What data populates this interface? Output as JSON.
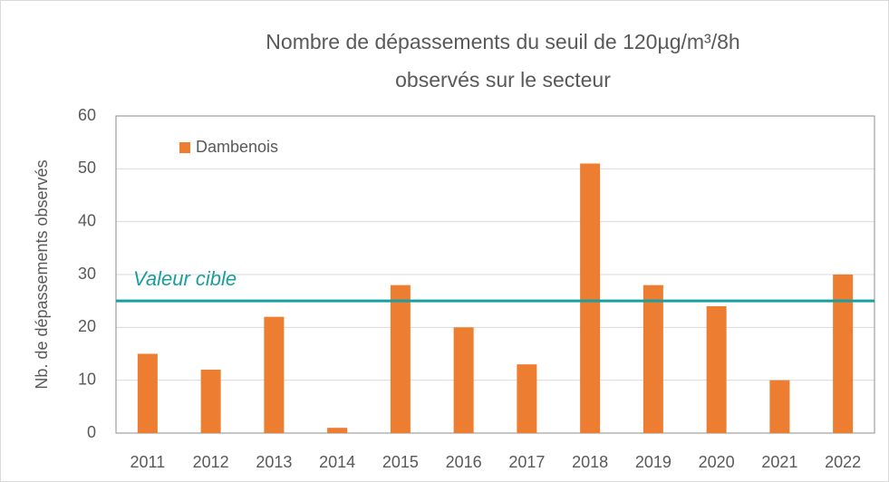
{
  "chart_data": {
    "type": "bar",
    "title": [
      "Nombre de dépassements du seuil de 120µg/m³/8h",
      "observés sur le secteur"
    ],
    "y_label": "Nb. de dépassements observés",
    "categories": [
      "2011",
      "2012",
      "2013",
      "2014",
      "2015",
      "2016",
      "2017",
      "2018",
      "2019",
      "2020",
      "2021",
      "2022"
    ],
    "series": [
      {
        "name": "Dambenois",
        "color": "#ed7d31",
        "values": [
          15,
          12,
          22,
          1,
          28,
          20,
          13,
          51,
          28,
          24,
          10,
          30
        ]
      }
    ],
    "reference_line": {
      "value": 25,
      "label": "Valeur cible",
      "color": "#1a9e9e"
    },
    "ylim": [
      0,
      60
    ],
    "yticks": [
      0,
      10,
      20,
      30,
      40,
      50,
      60
    ],
    "grid": true,
    "legend": "top-left"
  }
}
